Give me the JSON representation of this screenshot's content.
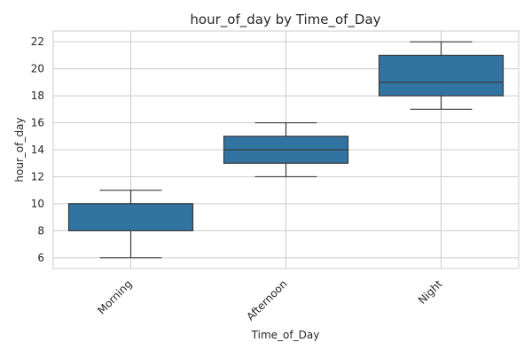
{
  "chart_data": {
    "type": "box",
    "title": "hour_of_day by Time_of_Day",
    "xlabel": "Time_of_Day",
    "ylabel": "hour_of_day",
    "categories": [
      "Morning",
      "Afternoon",
      "Night"
    ],
    "boxes": [
      {
        "category": "Morning",
        "whisker_low": 6,
        "q1": 8,
        "median": 10,
        "q3": 10,
        "whisker_high": 11
      },
      {
        "category": "Afternoon",
        "whisker_low": 12,
        "q1": 13,
        "median": 14,
        "q3": 15,
        "whisker_high": 16
      },
      {
        "category": "Night",
        "whisker_low": 17,
        "q1": 18,
        "median": 19,
        "q3": 21,
        "whisker_high": 22
      }
    ],
    "ylim": [
      5.2,
      22.8
    ],
    "yticks": [
      6,
      8,
      10,
      12,
      14,
      16,
      18,
      20,
      22
    ],
    "grid": true,
    "box_color": "#3274a1",
    "line_color": "#3b3b3b",
    "grid_color": "#cccccc",
    "frame_color": "#cccccc"
  }
}
